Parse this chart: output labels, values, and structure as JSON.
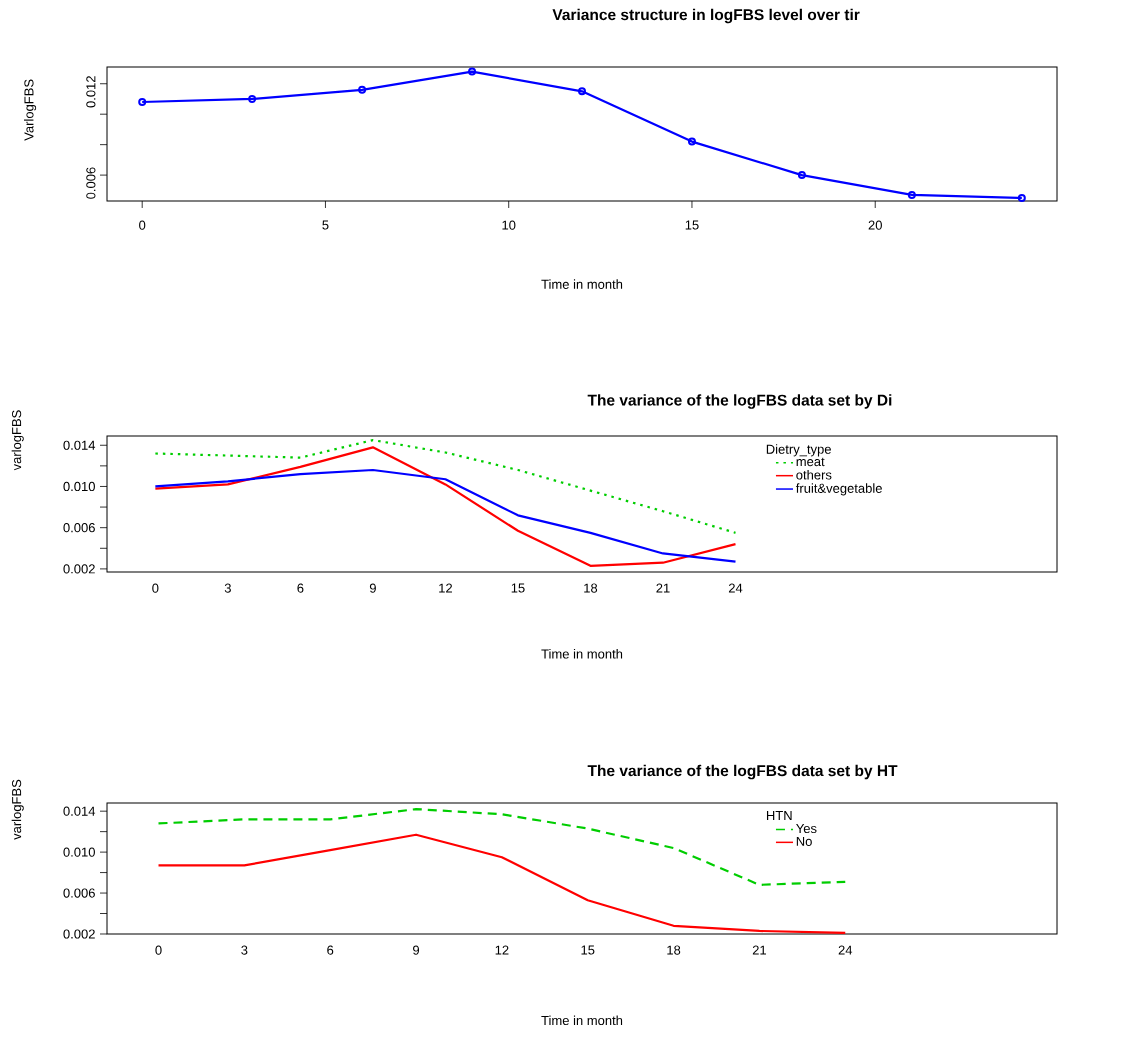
{
  "chart_data": [
    {
      "type": "line",
      "title": "Variance structure in logFBS level over tir",
      "xlabel": "Time in month",
      "ylabel": "VarlogFBS",
      "marker": "circle",
      "x": [
        0,
        3,
        6,
        9,
        12,
        15,
        18,
        21,
        24
      ],
      "series": [
        {
          "color": "#0000ff",
          "line_style": "solid",
          "values": [
            0.0108,
            0.011,
            0.0116,
            0.0128,
            0.0115,
            0.0082,
            0.006,
            0.0047,
            0.0045
          ]
        }
      ],
      "xlim": [
        -0.96,
        24.96
      ],
      "ylim": [
        0.0043,
        0.0131
      ],
      "xticks": [
        0,
        5,
        10,
        15,
        20
      ],
      "yticks": [
        {
          "value": 0.006,
          "label": "0.006"
        },
        {
          "value": 0.008,
          "label": null
        },
        {
          "value": 0.01,
          "label": null
        },
        {
          "value": 0.012,
          "label": "0.012"
        }
      ]
    },
    {
      "type": "line",
      "title": "The variance of the logFBS data set by Di",
      "xlabel": "Time in month",
      "ylabel": "varlogFBS",
      "legend": "top right",
      "legend_title": "Dietry_type",
      "x": [
        0,
        3,
        6,
        9,
        12,
        15,
        18,
        21,
        24
      ],
      "series": [
        {
          "name": "meat",
          "color": "#00cd00",
          "line_style": "dotted",
          "values": [
            0.0132,
            0.013,
            0.0128,
            0.0145,
            0.0133,
            0.0116,
            0.0096,
            0.0076,
            0.0055
          ]
        },
        {
          "name": "others",
          "color": "#ff0000",
          "line_style": "solid",
          "values": [
            0.0098,
            0.0102,
            0.0119,
            0.0138,
            0.0102,
            0.0057,
            0.0023,
            0.0026,
            0.0044
          ]
        },
        {
          "name": "fruit&vegetable",
          "color": "#0000ff",
          "line_style": "solid",
          "values": [
            0.01,
            0.0105,
            0.0112,
            0.0116,
            0.0107,
            0.0072,
            0.0055,
            0.0035,
            0.0027
          ]
        }
      ],
      "xlim": [
        -2,
        37.3
      ],
      "ylim": [
        0.0017,
        0.0149
      ],
      "xticks": [
        0,
        3,
        6,
        9,
        12,
        15,
        18,
        21,
        24
      ],
      "yticks": [
        {
          "value": 0.002,
          "label": "0.002"
        },
        {
          "value": 0.004,
          "label": null
        },
        {
          "value": 0.006,
          "label": "0.006"
        },
        {
          "value": 0.008,
          "label": null
        },
        {
          "value": 0.01,
          "label": "0.010"
        },
        {
          "value": 0.012,
          "label": null
        },
        {
          "value": 0.014,
          "label": "0.014"
        }
      ]
    },
    {
      "type": "line",
      "title": "The variance of the logFBS data set by HT",
      "xlabel": "Time in month",
      "ylabel": "varlogFBS",
      "legend": "top right",
      "legend_title": "HTN",
      "x": [
        0,
        3,
        6,
        9,
        12,
        15,
        18,
        21,
        24
      ],
      "series": [
        {
          "name": "Yes",
          "color": "#00cd00",
          "line_style": "dashed",
          "values": [
            0.0128,
            0.0132,
            0.0132,
            0.0142,
            0.0137,
            0.0123,
            0.0104,
            0.0068,
            0.0071
          ]
        },
        {
          "name": "No",
          "color": "#ff0000",
          "line_style": "solid",
          "values": [
            0.0087,
            0.0087,
            0.0102,
            0.0117,
            0.0095,
            0.0053,
            0.0028,
            0.0023,
            0.0021
          ]
        }
      ],
      "xlim": [
        -1.8,
        31.4
      ],
      "ylim": [
        0.002,
        0.0148
      ],
      "xticks": [
        0,
        3,
        6,
        9,
        12,
        15,
        18,
        21,
        24
      ],
      "yticks": [
        {
          "value": 0.002,
          "label": "0.002"
        },
        {
          "value": 0.004,
          "label": null
        },
        {
          "value": 0.006,
          "label": "0.006"
        },
        {
          "value": 0.008,
          "label": null
        },
        {
          "value": 0.01,
          "label": "0.010"
        },
        {
          "value": 0.012,
          "label": null
        },
        {
          "value": 0.014,
          "label": "0.014"
        }
      ]
    }
  ]
}
